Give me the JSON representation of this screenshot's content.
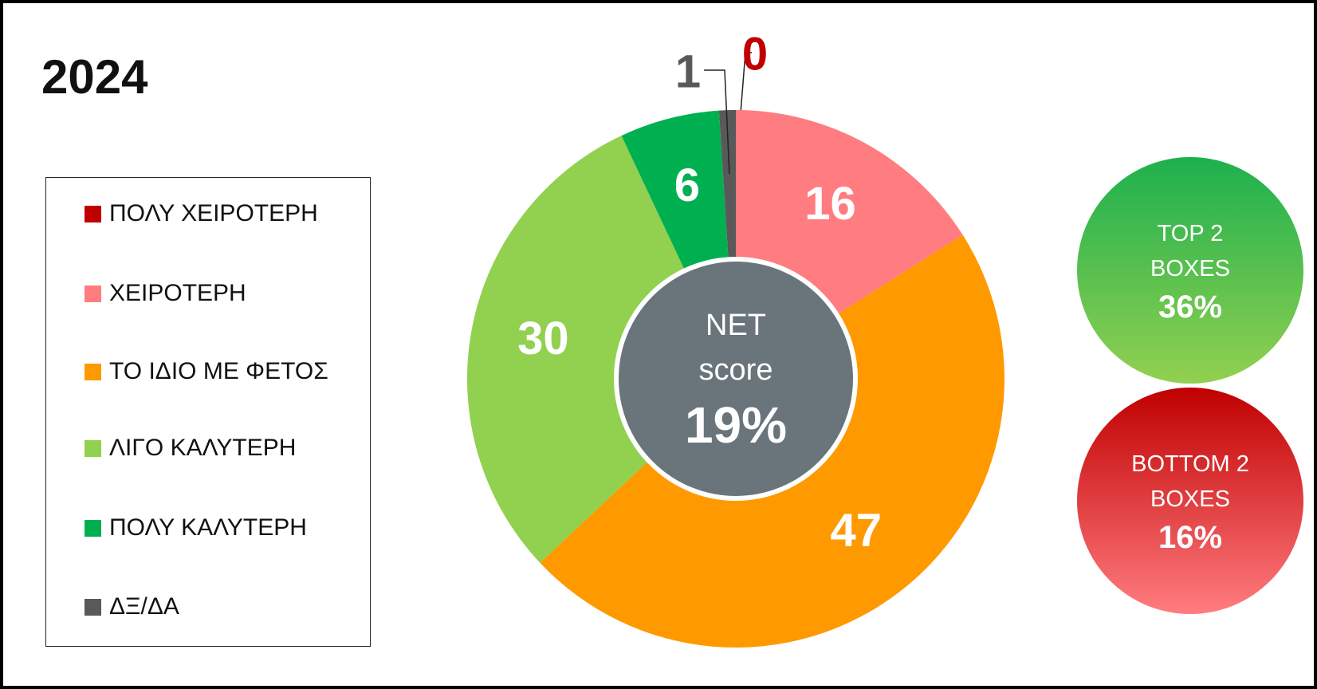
{
  "chart_data": {
    "type": "donut",
    "title": "2024",
    "categories": [
      "ΠΟΛΥ ΧΕΙΡΟΤΕΡΗ",
      "ΧΕΙΡΟΤΕΡΗ",
      "ΤΟ ΙΔΙΟ ΜΕ ΦΕΤΟΣ",
      "ΛΙΓΟ ΚΑΛΥΤΕΡΗ",
      "ΠΟΛΥ ΚΑΛΥΤΕΡΗ",
      "ΔΞ/ΔΑ"
    ],
    "values": [
      0,
      16,
      47,
      30,
      6,
      1
    ],
    "colors": [
      "#c00000",
      "#ff7c80",
      "#ff9900",
      "#92d050",
      "#00b050",
      "#595959"
    ],
    "legend": "left",
    "center": {
      "text": "NET score",
      "value": 19,
      "value_label": "19%",
      "color": "#69757a"
    },
    "summaries": [
      {
        "text": "TOP 2 BOXES",
        "value": 36,
        "value_label": "36%",
        "colors": [
          "#1db04e",
          "#92d050"
        ]
      },
      {
        "text": "BOTTOM 2 BOXES",
        "value": 16,
        "value_label": "16%",
        "colors": [
          "#c00000",
          "#ff7c80"
        ]
      }
    ]
  }
}
